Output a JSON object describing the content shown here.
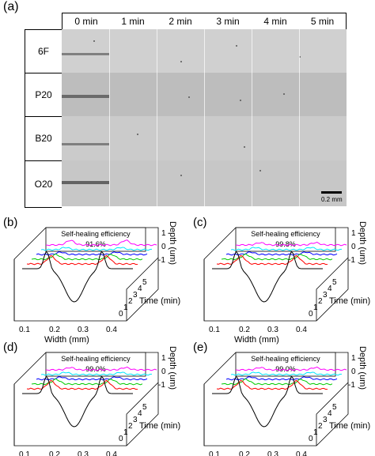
{
  "panel_a": {
    "letter": "(a)",
    "columns": [
      "0 min",
      "1 min",
      "2 min",
      "3 min",
      "4 min",
      "5 min"
    ],
    "rows": [
      "6F",
      "P20",
      "B20",
      "O20"
    ],
    "scale_bar_label": "0.2 mm"
  },
  "plots": [
    {
      "letter": "(b)",
      "efficiency_label": "Self-healing efficiency",
      "efficiency_value": "91.6%"
    },
    {
      "letter": "(c)",
      "efficiency_label": "Self-healing efficiency",
      "efficiency_value": "99.8%"
    },
    {
      "letter": "(d)",
      "efficiency_label": "Self-healing efficiency",
      "efficiency_value": "99.0%"
    },
    {
      "letter": "(e)",
      "efficiency_label": "Self-healing efficiency",
      "efficiency_value": "99.0%"
    }
  ],
  "axes": {
    "width_label": "Width (mm)",
    "width_ticks": [
      "0.1",
      "0.2",
      "0.3",
      "0.4"
    ],
    "time_label": "Time (min)",
    "time_ticks": [
      "0",
      "1",
      "2",
      "3",
      "4",
      "5"
    ],
    "depth_label": "Depth (um)",
    "depth_ticks": [
      "1",
      "0",
      "-1"
    ]
  },
  "series_colors": [
    "#000000",
    "#ff0000",
    "#00cc00",
    "#0000ff",
    "#00e5ff",
    "#ff00ff"
  ],
  "chart_data": [
    {
      "type": "line",
      "title": "Self-healing efficiency 91.6%",
      "xlabel": "Width (mm)",
      "ylabel": "Depth (um)",
      "zlabel": "Time (min)",
      "series": [
        {
          "name": "0",
          "values": []
        },
        {
          "name": "1",
          "values": []
        },
        {
          "name": "2",
          "values": []
        },
        {
          "name": "3",
          "values": []
        },
        {
          "name": "4",
          "values": []
        },
        {
          "name": "5",
          "values": []
        }
      ]
    },
    {
      "type": "line",
      "title": "Self-healing efficiency 99.8%",
      "xlabel": "Width (mm)",
      "ylabel": "Depth (um)",
      "zlabel": "Time (min)"
    },
    {
      "type": "line",
      "title": "Self-healing efficiency 99.0%",
      "xlabel": "Width (mm)",
      "ylabel": "Depth (um)",
      "zlabel": "Time (min)"
    },
    {
      "type": "line",
      "title": "Self-healing efficiency 99.0%",
      "xlabel": "Width (mm)",
      "ylabel": "Depth (um)",
      "zlabel": "Time (min)"
    }
  ]
}
